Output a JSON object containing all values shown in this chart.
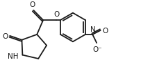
{
  "bg_color": "#ffffff",
  "line_color": "#1a1a1a",
  "lw": 1.3,
  "fs": 7.5,
  "xlim": [
    0,
    10
  ],
  "ylim": [
    0,
    5.5
  ]
}
